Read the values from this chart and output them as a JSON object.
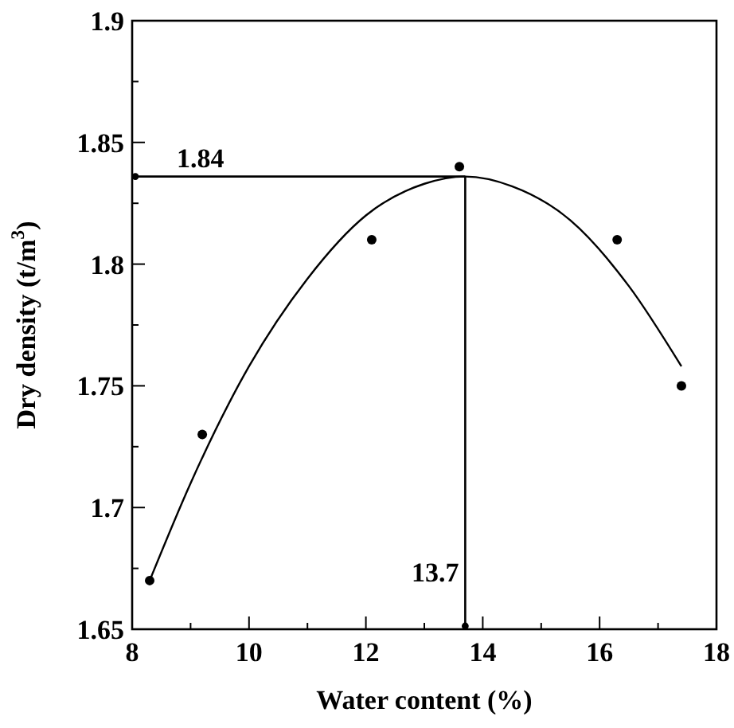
{
  "chart_data": {
    "type": "scatter",
    "xlabel": "Water content (%)",
    "ylabel": "Dry density (t/m$^{3}$)",
    "xlim": [
      8,
      18
    ],
    "ylim": [
      1.65,
      1.9
    ],
    "xticks": [
      8,
      {
        "value": 9,
        "label": null
      },
      10,
      {
        "value": 11,
        "label": null
      },
      12,
      {
        "value": 13,
        "label": null
      },
      14,
      {
        "value": 15,
        "label": null
      },
      16,
      {
        "value": 17,
        "label": null
      },
      18
    ],
    "yticks": [
      1.65,
      {
        "value": 1.675,
        "label": null
      },
      1.7,
      {
        "value": 1.725,
        "label": null
      },
      1.75,
      {
        "value": 1.775,
        "label": null
      },
      1.8,
      {
        "value": 1.825,
        "label": null
      },
      1.85,
      {
        "value": 1.875,
        "label": null
      },
      1.9
    ],
    "grid": false,
    "series": [
      {
        "color": "#000000",
        "marker": "circle",
        "x": [
          8.3,
          9.2,
          12.1,
          13.6,
          16.3,
          17.4
        ],
        "values": [
          1.67,
          1.73,
          1.81,
          1.84,
          1.81,
          1.75
        ]
      },
      {
        "type": "line",
        "color": "#000000",
        "line_style": "solid",
        "x": [
          8.3,
          9,
          10,
          11,
          12,
          13,
          13.7,
          14.5,
          15.5,
          16.5,
          17.4
        ],
        "values": [
          1.67,
          1.71,
          1.758,
          1.794,
          1.82,
          1.833,
          1.836,
          1.832,
          1.818,
          1.791,
          1.758
        ]
      }
    ],
    "ref_lines": [
      {
        "axis": "y",
        "value": 1.836,
        "label": "1.84",
        "color": "#000000",
        "line_style": "solid"
      },
      {
        "axis": "x",
        "value": 13.7,
        "label": "13.7",
        "color": "#000000",
        "line_style": "solid"
      }
    ]
  }
}
